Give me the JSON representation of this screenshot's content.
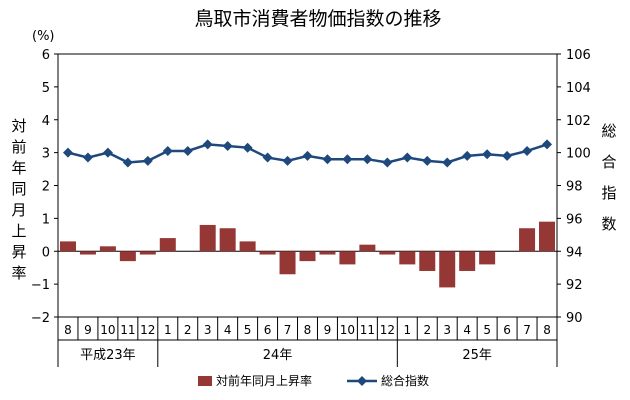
{
  "chart_data": {
    "type": "bar+line",
    "title": "鳥取市消費者物価指数の推移",
    "left_unit": "(%)",
    "left_axis": {
      "label": "対前年同月上昇率",
      "ylim": [
        -2,
        6
      ],
      "ticks": [
        -2,
        -1,
        0,
        1,
        2,
        3,
        4,
        5,
        6
      ]
    },
    "right_axis": {
      "label": "総合指数",
      "ylim": [
        90,
        106
      ],
      "ticks": [
        90,
        92,
        94,
        96,
        98,
        100,
        102,
        104,
        106
      ]
    },
    "categories": [
      "8",
      "9",
      "10",
      "11",
      "12",
      "1",
      "2",
      "3",
      "4",
      "5",
      "6",
      "7",
      "8",
      "9",
      "10",
      "11",
      "12",
      "1",
      "2",
      "3",
      "4",
      "5",
      "6",
      "7",
      "8"
    ],
    "year_groups": [
      {
        "label": "平成23年",
        "start": 0,
        "end": 4
      },
      {
        "label": "24年",
        "start": 5,
        "end": 16
      },
      {
        "label": "25年",
        "start": 17,
        "end": 24
      }
    ],
    "series": [
      {
        "name": "対前年同月上昇率",
        "type": "bar",
        "axis": "left",
        "color": "#953735",
        "values": [
          0.3,
          -0.1,
          0.15,
          -0.3,
          -0.1,
          0.4,
          0.0,
          0.8,
          0.7,
          0.3,
          -0.1,
          -0.7,
          -0.3,
          -0.1,
          -0.4,
          0.2,
          -0.1,
          -0.4,
          -0.6,
          -1.1,
          -0.6,
          -0.4,
          0.0,
          0.7,
          0.9
        ]
      },
      {
        "name": "総合指数",
        "type": "line",
        "axis": "right",
        "color": "#1f497d",
        "values": [
          100.0,
          99.7,
          100.0,
          99.4,
          99.5,
          100.1,
          100.1,
          100.5,
          100.4,
          100.3,
          99.7,
          99.5,
          99.8,
          99.6,
          99.6,
          99.6,
          99.4,
          99.7,
          99.5,
          99.4,
          99.8,
          99.9,
          99.8,
          100.1,
          100.5
        ]
      }
    ],
    "grid": false,
    "legend_position": "bottom"
  }
}
